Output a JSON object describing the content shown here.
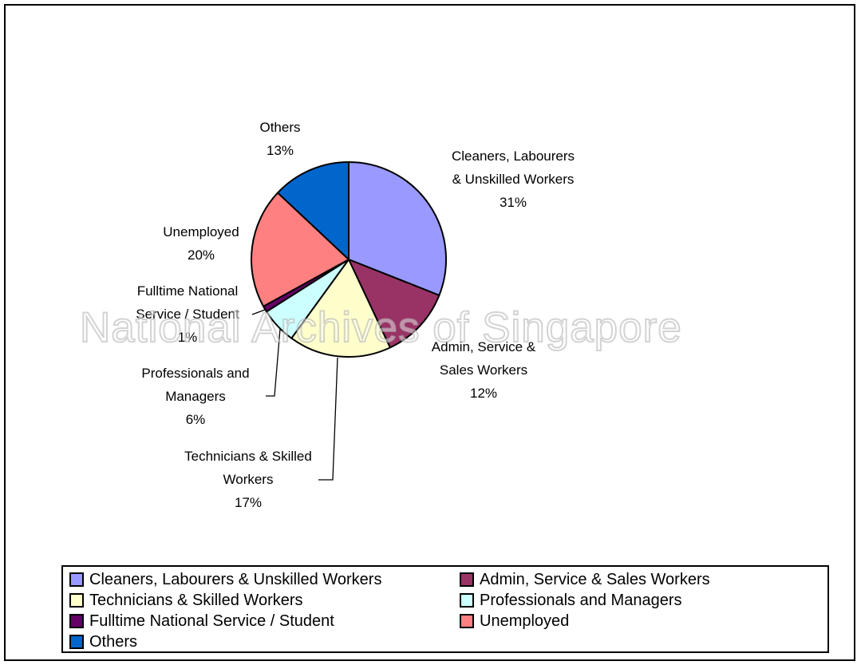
{
  "watermark": "National Archives of Singapore",
  "chart_data": {
    "type": "pie",
    "title": "",
    "direction": "clockwise",
    "start_angle_deg": 0,
    "grid": false,
    "legend_position": "bottom",
    "series": [
      {
        "id": "cleaners",
        "label": "Cleaners, Labourers & Unskilled Workers",
        "value": 31,
        "percent_label": "31%",
        "color": "#9999FF"
      },
      {
        "id": "admin",
        "label": "Admin, Service & Sales Workers",
        "value": 12,
        "percent_label": "12%",
        "color": "#993366"
      },
      {
        "id": "technicians",
        "label": "Technicians & Skilled Workers",
        "value": 17,
        "percent_label": "17%",
        "color": "#FFFFCC"
      },
      {
        "id": "professionals",
        "label": "Professionals and Managers",
        "value": 6,
        "percent_label": "6%",
        "color": "#CCFFFF"
      },
      {
        "id": "ns-student",
        "label": "Fulltime National Service / Student",
        "value": 1,
        "percent_label": "1%",
        "color": "#660066"
      },
      {
        "id": "unemployed",
        "label": "Unemployed",
        "value": 20,
        "percent_label": "20%",
        "color": "#FF8080"
      },
      {
        "id": "others",
        "label": "Others",
        "value": 13,
        "percent_label": "13%",
        "color": "#0066CC"
      }
    ],
    "callouts": [
      {
        "slice": "cleaners",
        "lines": [
          "Cleaners, Labourers",
          "& Unskilled Workers",
          "31%"
        ]
      },
      {
        "slice": "admin",
        "lines": [
          "Admin, Service &",
          "Sales Workers",
          "12%"
        ]
      },
      {
        "slice": "technicians",
        "lines": [
          "Technicians & Skilled",
          "Workers",
          "17%"
        ]
      },
      {
        "slice": "professionals",
        "lines": [
          "Professionals and",
          "Managers",
          "6%"
        ]
      },
      {
        "slice": "ns-student",
        "lines": [
          "Fulltime National",
          "Service / Student",
          "1%"
        ]
      },
      {
        "slice": "unemployed",
        "lines": [
          "Unemployed",
          "20%"
        ]
      },
      {
        "slice": "others",
        "lines": [
          "Others",
          "13%"
        ]
      }
    ],
    "legend_columns": [
      [
        "cleaners",
        "technicians",
        "ns-student",
        "others"
      ],
      [
        "admin",
        "professionals",
        "unemployed"
      ]
    ]
  }
}
